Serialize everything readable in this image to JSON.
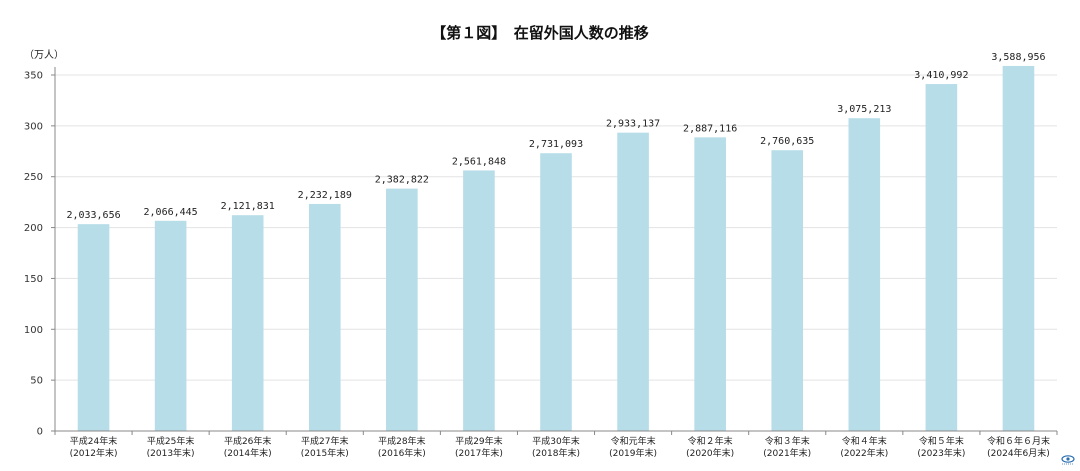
{
  "chart_data": {
    "type": "bar",
    "title": "【第１図】　在留外国人数の推移",
    "ylabel": "（万人）",
    "ylim": [
      0,
      350
    ],
    "yticks": [
      0,
      50,
      100,
      150,
      200,
      250,
      300,
      350
    ],
    "grid": true,
    "bar_color": "#b7dde8",
    "categories": [
      [
        "平成24年末",
        "(2012年末)"
      ],
      [
        "平成25年末",
        "(2013年末)"
      ],
      [
        "平成26年末",
        "(2014年末)"
      ],
      [
        "平成27年末",
        "(2015年末)"
      ],
      [
        "平成28年末",
        "(2016年末)"
      ],
      [
        "平成29年末",
        "(2017年末)"
      ],
      [
        "平成30年末",
        "(2018年末)"
      ],
      [
        "令和元年末",
        "(2019年末)"
      ],
      [
        "令和２年末",
        "(2020年末)"
      ],
      [
        "令和３年末",
        "(2021年末)"
      ],
      [
        "令和４年末",
        "(2022年末)"
      ],
      [
        "令和５年末",
        "(2023年末)"
      ],
      [
        "令和６年６月末",
        "(2024年6月末)"
      ]
    ],
    "values": [
      2033656,
      2066445,
      2121831,
      2232189,
      2382822,
      2561848,
      2731093,
      2933137,
      2887116,
      2760635,
      3075213,
      3410992,
      3588956
    ],
    "data_labels": [
      "2,033,656",
      "2,066,445",
      "2,121,831",
      "2,232,189",
      "2,382,822",
      "2,561,848",
      "2,731,093",
      "2,933,137",
      "2,887,116",
      "2,760,635",
      "3,075,213",
      "3,410,992",
      "3,588,956"
    ]
  }
}
